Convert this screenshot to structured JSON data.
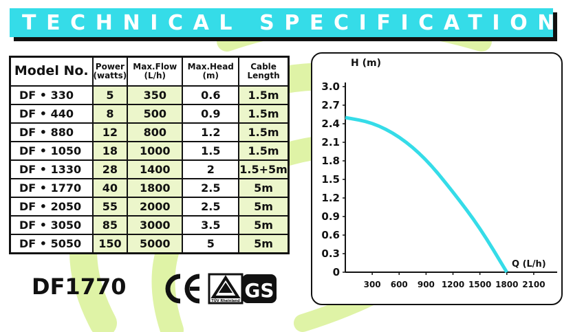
{
  "banner": {
    "title": "TECHNICAL SPECIFICATIONS"
  },
  "table": {
    "headers": [
      {
        "line1": "Model No.",
        "line2": ""
      },
      {
        "line1": "Power",
        "line2": "(watts)"
      },
      {
        "line1": "Max.Flow",
        "line2": "(L/h)"
      },
      {
        "line1": "Max.Head",
        "line2": "(m)"
      },
      {
        "line1": "Cable",
        "line2": "Length"
      }
    ],
    "rows": [
      {
        "model": "DF • 330",
        "power": "5",
        "flow": "350",
        "head": "0.6",
        "cable": "1.5m"
      },
      {
        "model": "DF • 440",
        "power": "8",
        "flow": "500",
        "head": "0.9",
        "cable": "1.5m"
      },
      {
        "model": "DF • 880",
        "power": "12",
        "flow": "800",
        "head": "1.2",
        "cable": "1.5m"
      },
      {
        "model": "DF • 1050",
        "power": "18",
        "flow": "1000",
        "head": "1.5",
        "cable": "1.5m"
      },
      {
        "model": "DF • 1330",
        "power": "28",
        "flow": "1400",
        "head": "2",
        "cable": "1.5+5m"
      },
      {
        "model": "DF • 1770",
        "power": "40",
        "flow": "1800",
        "head": "2.5",
        "cable": "5m"
      },
      {
        "model": "DF • 2050",
        "power": "55",
        "flow": "2000",
        "head": "2.5",
        "cable": "5m"
      },
      {
        "model": "DF • 3050",
        "power": "85",
        "flow": "3000",
        "head": "3.5",
        "cable": "5m"
      },
      {
        "model": "DF • 5050",
        "power": "150",
        "flow": "5000",
        "head": "5",
        "cable": "5m"
      }
    ]
  },
  "product": {
    "model": "DF1770"
  },
  "certifications": {
    "ce": "CE",
    "tuv": "TÜV Rheinland",
    "gs": "GS"
  },
  "colors": {
    "banner": "#35dce8",
    "curve": "#35dce8",
    "swirl": "#dff3a6",
    "cell_green": "#ecf6cb"
  },
  "chart_data": {
    "type": "line",
    "ylabel": "H (m)",
    "xlabel": "Q (L/h)",
    "y_ticks": [
      "3.0",
      "2.7",
      "2.4",
      "2.1",
      "1.8",
      "1.5",
      "1.2",
      "0.9",
      "0.6",
      "0.3",
      "0"
    ],
    "x_ticks": [
      "300",
      "600",
      "900",
      "1200",
      "1500",
      "1800",
      "2100"
    ],
    "xlim": [
      0,
      2300
    ],
    "ylim": [
      0,
      3.0
    ],
    "series": [
      {
        "values_x": [
          0,
          300,
          600,
          900,
          1200,
          1500,
          1800
        ],
        "values_y": [
          2.5,
          2.42,
          2.2,
          1.83,
          1.3,
          0.72,
          0
        ]
      }
    ]
  }
}
